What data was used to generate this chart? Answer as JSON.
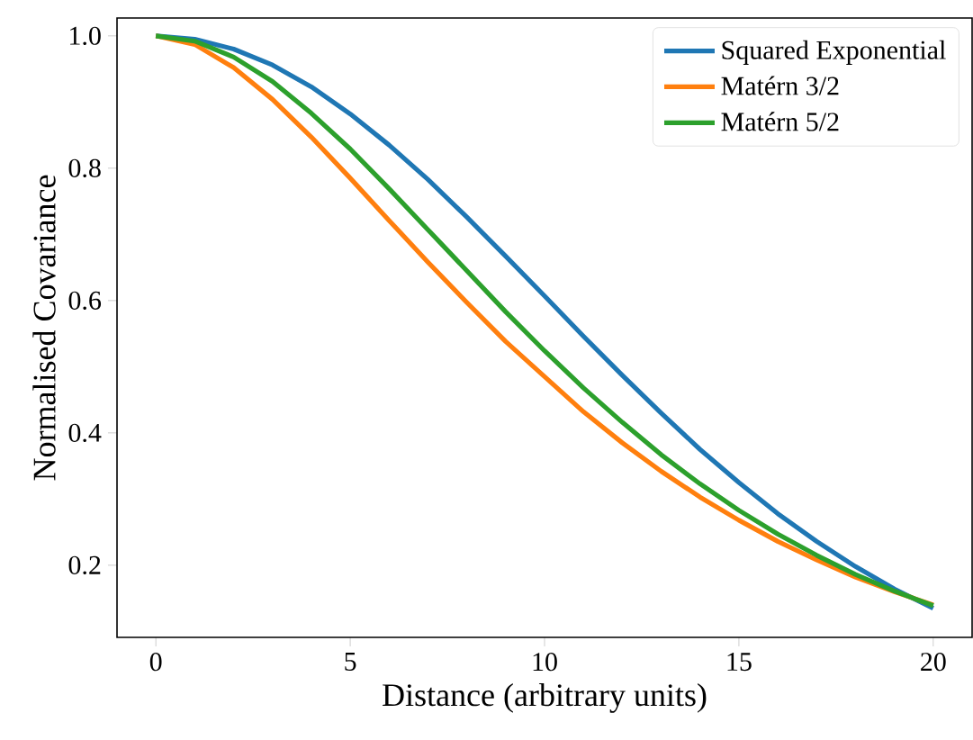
{
  "chart_data": {
    "type": "line",
    "xlabel": "Distance (arbitrary units)",
    "ylabel": "Normalised Covariance",
    "x": [
      0,
      1,
      2,
      3,
      4,
      5,
      6,
      7,
      8,
      9,
      10,
      11,
      12,
      13,
      14,
      15,
      16,
      17,
      18,
      19,
      20
    ],
    "series": [
      {
        "name": "Squared Exponential",
        "color": "#1f77b4",
        "values": [
          1,
          0.995,
          0.98,
          0.956,
          0.923,
          0.882,
          0.835,
          0.783,
          0.726,
          0.667,
          0.607,
          0.546,
          0.487,
          0.43,
          0.375,
          0.325,
          0.278,
          0.236,
          0.198,
          0.164,
          0.135
        ]
      },
      {
        "name": "Matérn 3/2",
        "color": "#ff7f0e",
        "values": [
          1,
          0.987,
          0.952,
          0.904,
          0.847,
          0.785,
          0.721,
          0.658,
          0.597,
          0.538,
          0.485,
          0.432,
          0.385,
          0.342,
          0.303,
          0.268,
          0.236,
          0.208,
          0.182,
          0.16,
          0.14
        ]
      },
      {
        "name": "Matérn 5/2",
        "color": "#2ca02c",
        "values": [
          1,
          0.992,
          0.968,
          0.931,
          0.883,
          0.829,
          0.769,
          0.707,
          0.645,
          0.583,
          0.524,
          0.468,
          0.416,
          0.367,
          0.323,
          0.283,
          0.247,
          0.215,
          0.186,
          0.161,
          0.139
        ]
      }
    ],
    "xlim": [
      -1,
      21
    ],
    "ylim": [
      0.091,
      1.027
    ],
    "xticks": [
      0,
      5,
      10,
      15,
      20
    ],
    "yticks": [
      {
        "value": 0.2,
        "label": "0.2"
      },
      {
        "value": 0.4,
        "label": "0.4"
      },
      {
        "value": 0.6,
        "label": "0.6"
      },
      {
        "value": 0.8,
        "label": "0.8"
      },
      {
        "value": 1.0,
        "label": "1.0"
      }
    ],
    "legend": "top right"
  }
}
